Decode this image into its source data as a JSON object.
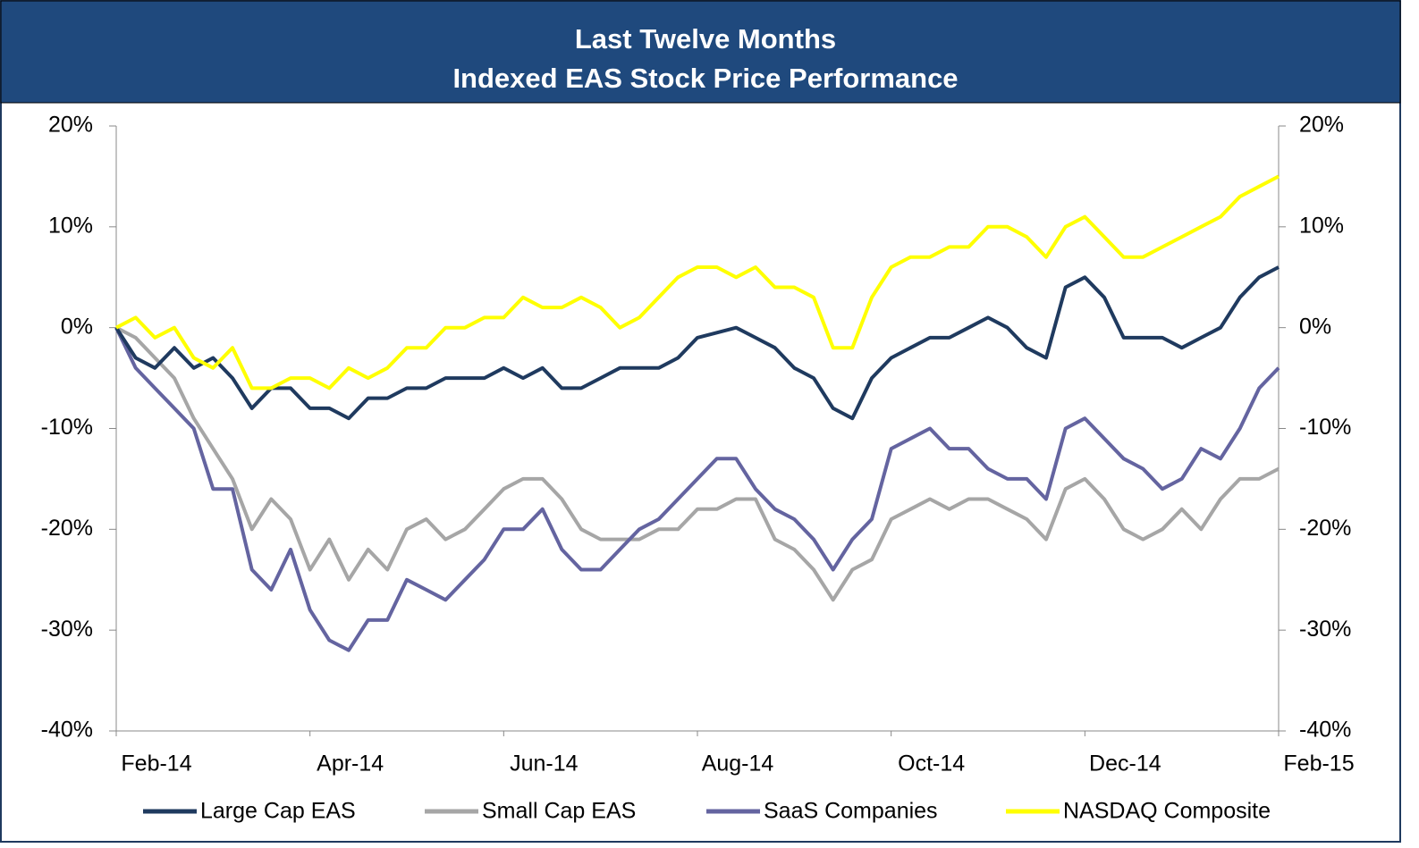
{
  "chart_data": {
    "type": "line",
    "title": "Last Twelve Months",
    "subtitle": "Indexed EAS Stock Price Performance",
    "categories": [
      "Feb-14",
      null,
      null,
      null,
      null,
      null,
      null,
      null,
      null,
      null,
      "Apr-14",
      null,
      null,
      null,
      null,
      null,
      null,
      null,
      null,
      null,
      "Jun-14",
      null,
      null,
      null,
      null,
      null,
      null,
      null,
      null,
      null,
      "Aug-14",
      null,
      null,
      null,
      null,
      null,
      null,
      null,
      null,
      null,
      "Oct-14",
      null,
      null,
      null,
      null,
      null,
      null,
      null,
      null,
      null,
      "Dec-14",
      null,
      null,
      null,
      null,
      null,
      null,
      null,
      null,
      null,
      "Feb-15"
    ],
    "series": [
      {
        "name": "Large Cap EAS",
        "color": "#1f3a5f",
        "values": [
          0,
          -3,
          -4,
          -2,
          -4,
          -3,
          -5,
          -8,
          -6,
          -6,
          -8,
          -8,
          -9,
          -7,
          -7,
          -6,
          -6,
          -5,
          -5,
          -5,
          -4,
          -5,
          -4,
          -6,
          -6,
          -5,
          -4,
          -4,
          -4,
          -3,
          -1,
          -0.5,
          0,
          -1,
          -2,
          -4,
          -5,
          -8,
          -9,
          -5,
          -3,
          -2,
          -1,
          -1,
          0,
          1,
          0,
          -2,
          -3,
          4,
          5,
          3,
          -1,
          -1,
          -1,
          -2,
          -1,
          0,
          3,
          5,
          6
        ]
      },
      {
        "name": "Small Cap EAS",
        "color": "#a6a6a6",
        "values": [
          0,
          -1,
          -3,
          -5,
          -9,
          -12,
          -15,
          -20,
          -17,
          -19,
          -24,
          -21,
          -25,
          -22,
          -24,
          -20,
          -19,
          -21,
          -20,
          -18,
          -16,
          -15,
          -15,
          -17,
          -20,
          -21,
          -21,
          -21,
          -20,
          -20,
          -18,
          -18,
          -17,
          -17,
          -21,
          -22,
          -24,
          -27,
          -24,
          -23,
          -19,
          -18,
          -17,
          -18,
          -17,
          -17,
          -18,
          -19,
          -21,
          -16,
          -15,
          -17,
          -20,
          -21,
          -20,
          -18,
          -20,
          -17,
          -15,
          -15,
          -14
        ]
      },
      {
        "name": "SaaS Companies",
        "color": "#6464a0",
        "values": [
          0,
          -4,
          -6,
          -8,
          -10,
          -16,
          -16,
          -24,
          -26,
          -22,
          -28,
          -31,
          -32,
          -29,
          -29,
          -25,
          -26,
          -27,
          -25,
          -23,
          -20,
          -20,
          -18,
          -22,
          -24,
          -24,
          -22,
          -20,
          -19,
          -17,
          -15,
          -13,
          -13,
          -16,
          -18,
          -19,
          -21,
          -24,
          -21,
          -19,
          -12,
          -11,
          -10,
          -12,
          -12,
          -14,
          -15,
          -15,
          -17,
          -10,
          -9,
          -11,
          -13,
          -14,
          -16,
          -15,
          -12,
          -13,
          -10,
          -6,
          -4
        ]
      },
      {
        "name": "NASDAQ Composite",
        "color": "#ffff00",
        "values": [
          0,
          1,
          -1,
          0,
          -3,
          -4,
          -2,
          -6,
          -6,
          -5,
          -5,
          -6,
          -4,
          -5,
          -4,
          -2,
          -2,
          0,
          0,
          1,
          1,
          3,
          2,
          2,
          3,
          2,
          0,
          1,
          3,
          5,
          6,
          6,
          5,
          6,
          4,
          4,
          3,
          -2,
          -2,
          3,
          6,
          7,
          7,
          8,
          8,
          10,
          10,
          9,
          7,
          10,
          11,
          9,
          7,
          7,
          8,
          9,
          10,
          11,
          13,
          14,
          15
        ]
      }
    ],
    "ylim": [
      -40,
      20
    ],
    "yticks": [
      {
        "value": -40,
        "label": "-40%"
      },
      {
        "value": -30,
        "label": "-30%"
      },
      {
        "value": -20,
        "label": "-20%"
      },
      {
        "value": -10,
        "label": "-10%"
      },
      {
        "value": 0,
        "label": "0%"
      },
      {
        "value": 10,
        "label": "10%"
      },
      {
        "value": 20,
        "label": "20%"
      }
    ],
    "y2lim": [
      -40,
      20
    ],
    "y2ticks": [
      {
        "value": -40,
        "label": "-40%"
      },
      {
        "value": -30,
        "label": "-30%"
      },
      {
        "value": -20,
        "label": "-20%"
      },
      {
        "value": -10,
        "label": "-10%"
      },
      {
        "value": 0,
        "label": "0%"
      },
      {
        "value": 10,
        "label": "10%"
      },
      {
        "value": 20,
        "label": "20%"
      }
    ],
    "grid": false,
    "legend": "bottom"
  }
}
